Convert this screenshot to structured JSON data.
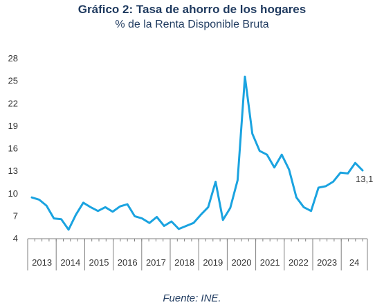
{
  "title": "Gráfico 2: Tasa de ahorro de los hogares",
  "subtitle": "% de la Renta Disponible Bruta",
  "source": "Fuente: INE.",
  "colors": {
    "line": "#1aa3e0",
    "axis": "#7f7f7f",
    "text": "#1f3a5f"
  },
  "chart_data": {
    "type": "line",
    "title": "Gráfico 2: Tasa de ahorro de los hogares",
    "subtitle": "% de la Renta Disponible Bruta",
    "xlabel": "",
    "ylabel": "",
    "ylim": [
      4,
      28
    ],
    "yticks": [
      4,
      7,
      10,
      13,
      16,
      19,
      22,
      25,
      28
    ],
    "grid": false,
    "year_labels": [
      "2013",
      "2014",
      "2015",
      "2016",
      "2017",
      "2018",
      "2019",
      "2020",
      "2021",
      "2022",
      "2023",
      "24"
    ],
    "series": [
      {
        "values": [
          9.5,
          9.2,
          8.4,
          6.7,
          6.6,
          5.2,
          7.2,
          8.8,
          8.2,
          7.7,
          8.2,
          7.6,
          8.3,
          8.6,
          7.0,
          6.7,
          6.1,
          6.9,
          5.7,
          6.3,
          5.3,
          5.7,
          6.1,
          7.2,
          8.2,
          11.6,
          6.5,
          8.1,
          11.8,
          25.6,
          18.0,
          15.7,
          15.2,
          13.5,
          15.2,
          13.2,
          9.5,
          8.2,
          7.7,
          10.8,
          11.0,
          11.6,
          12.8,
          12.7,
          14.1,
          13.1
        ]
      }
    ],
    "annotations": [
      {
        "text": "13,1"
      }
    ]
  }
}
